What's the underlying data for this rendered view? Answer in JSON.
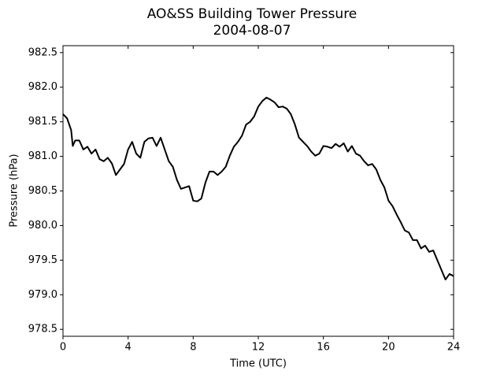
{
  "chart_data": {
    "type": "line",
    "title": "AO&SS Building Tower Pressure",
    "subtitle": "2004-08-07",
    "x_label": "Time (UTC)",
    "y_label": "Pressure (hPa)",
    "x": [
      0,
      0.25,
      0.5,
      0.6,
      0.75,
      1,
      1.25,
      1.5,
      1.75,
      2,
      2.25,
      2.5,
      2.75,
      3,
      3.25,
      3.5,
      3.75,
      4,
      4.25,
      4.5,
      4.75,
      5,
      5.25,
      5.5,
      5.75,
      6,
      6.25,
      6.5,
      6.75,
      7,
      7.25,
      7.5,
      7.75,
      8,
      8.25,
      8.5,
      8.75,
      9,
      9.25,
      9.5,
      9.75,
      10,
      10.25,
      10.5,
      10.75,
      11,
      11.25,
      11.5,
      11.75,
      12,
      12.25,
      12.5,
      12.75,
      13,
      13.25,
      13.5,
      13.75,
      14,
      14.25,
      14.5,
      14.75,
      15,
      15.25,
      15.5,
      15.75,
      16,
      16.25,
      16.5,
      16.75,
      17,
      17.25,
      17.5,
      17.75,
      18,
      18.25,
      18.5,
      18.75,
      19,
      19.25,
      19.5,
      19.75,
      20,
      20.25,
      20.5,
      20.75,
      21,
      21.25,
      21.5,
      21.75,
      22,
      22.25,
      22.5,
      22.75,
      23,
      23.25,
      23.5,
      23.75,
      24
    ],
    "series": [
      {
        "name": "Pressure",
        "color": "#000000",
        "values": [
          981.61,
          981.55,
          981.38,
          981.15,
          981.23,
          981.23,
          981.1,
          981.14,
          981.04,
          981.1,
          980.96,
          980.93,
          980.98,
          980.9,
          980.73,
          980.81,
          980.89,
          981.1,
          981.21,
          981.04,
          980.98,
          981.21,
          981.26,
          981.27,
          981.15,
          981.27,
          981.1,
          980.93,
          980.85,
          980.66,
          980.53,
          980.55,
          980.57,
          980.36,
          980.35,
          980.39,
          980.62,
          980.78,
          980.78,
          980.73,
          980.78,
          980.85,
          981.01,
          981.14,
          981.21,
          981.3,
          981.46,
          981.5,
          981.58,
          981.72,
          981.8,
          981.85,
          981.82,
          981.78,
          981.71,
          981.72,
          981.69,
          981.61,
          981.46,
          981.27,
          981.21,
          981.15,
          981.07,
          981.01,
          981.04,
          981.15,
          981.14,
          981.12,
          981.18,
          981.14,
          981.19,
          981.07,
          981.15,
          981.04,
          981.01,
          980.93,
          980.87,
          980.89,
          980.81,
          980.66,
          980.55,
          980.36,
          980.28,
          980.16,
          980.05,
          979.93,
          979.9,
          979.79,
          979.79,
          979.67,
          979.71,
          979.62,
          979.64,
          979.5,
          979.36,
          979.22,
          979.3,
          979.27
        ]
      }
    ],
    "xlim": [
      0,
      24
    ],
    "xticks": [
      0,
      4,
      8,
      12,
      16,
      20,
      24
    ],
    "ylim": [
      978.4,
      982.6
    ],
    "yticks": [
      978.5,
      {
        "value": 979,
        "label": "979.0"
      },
      979.5,
      {
        "value": 980,
        "label": "980.0"
      },
      980.5,
      {
        "value": 981,
        "label": "981.0"
      },
      981.5,
      {
        "value": 982,
        "label": "982.0"
      },
      982.5
    ],
    "grid": false
  }
}
